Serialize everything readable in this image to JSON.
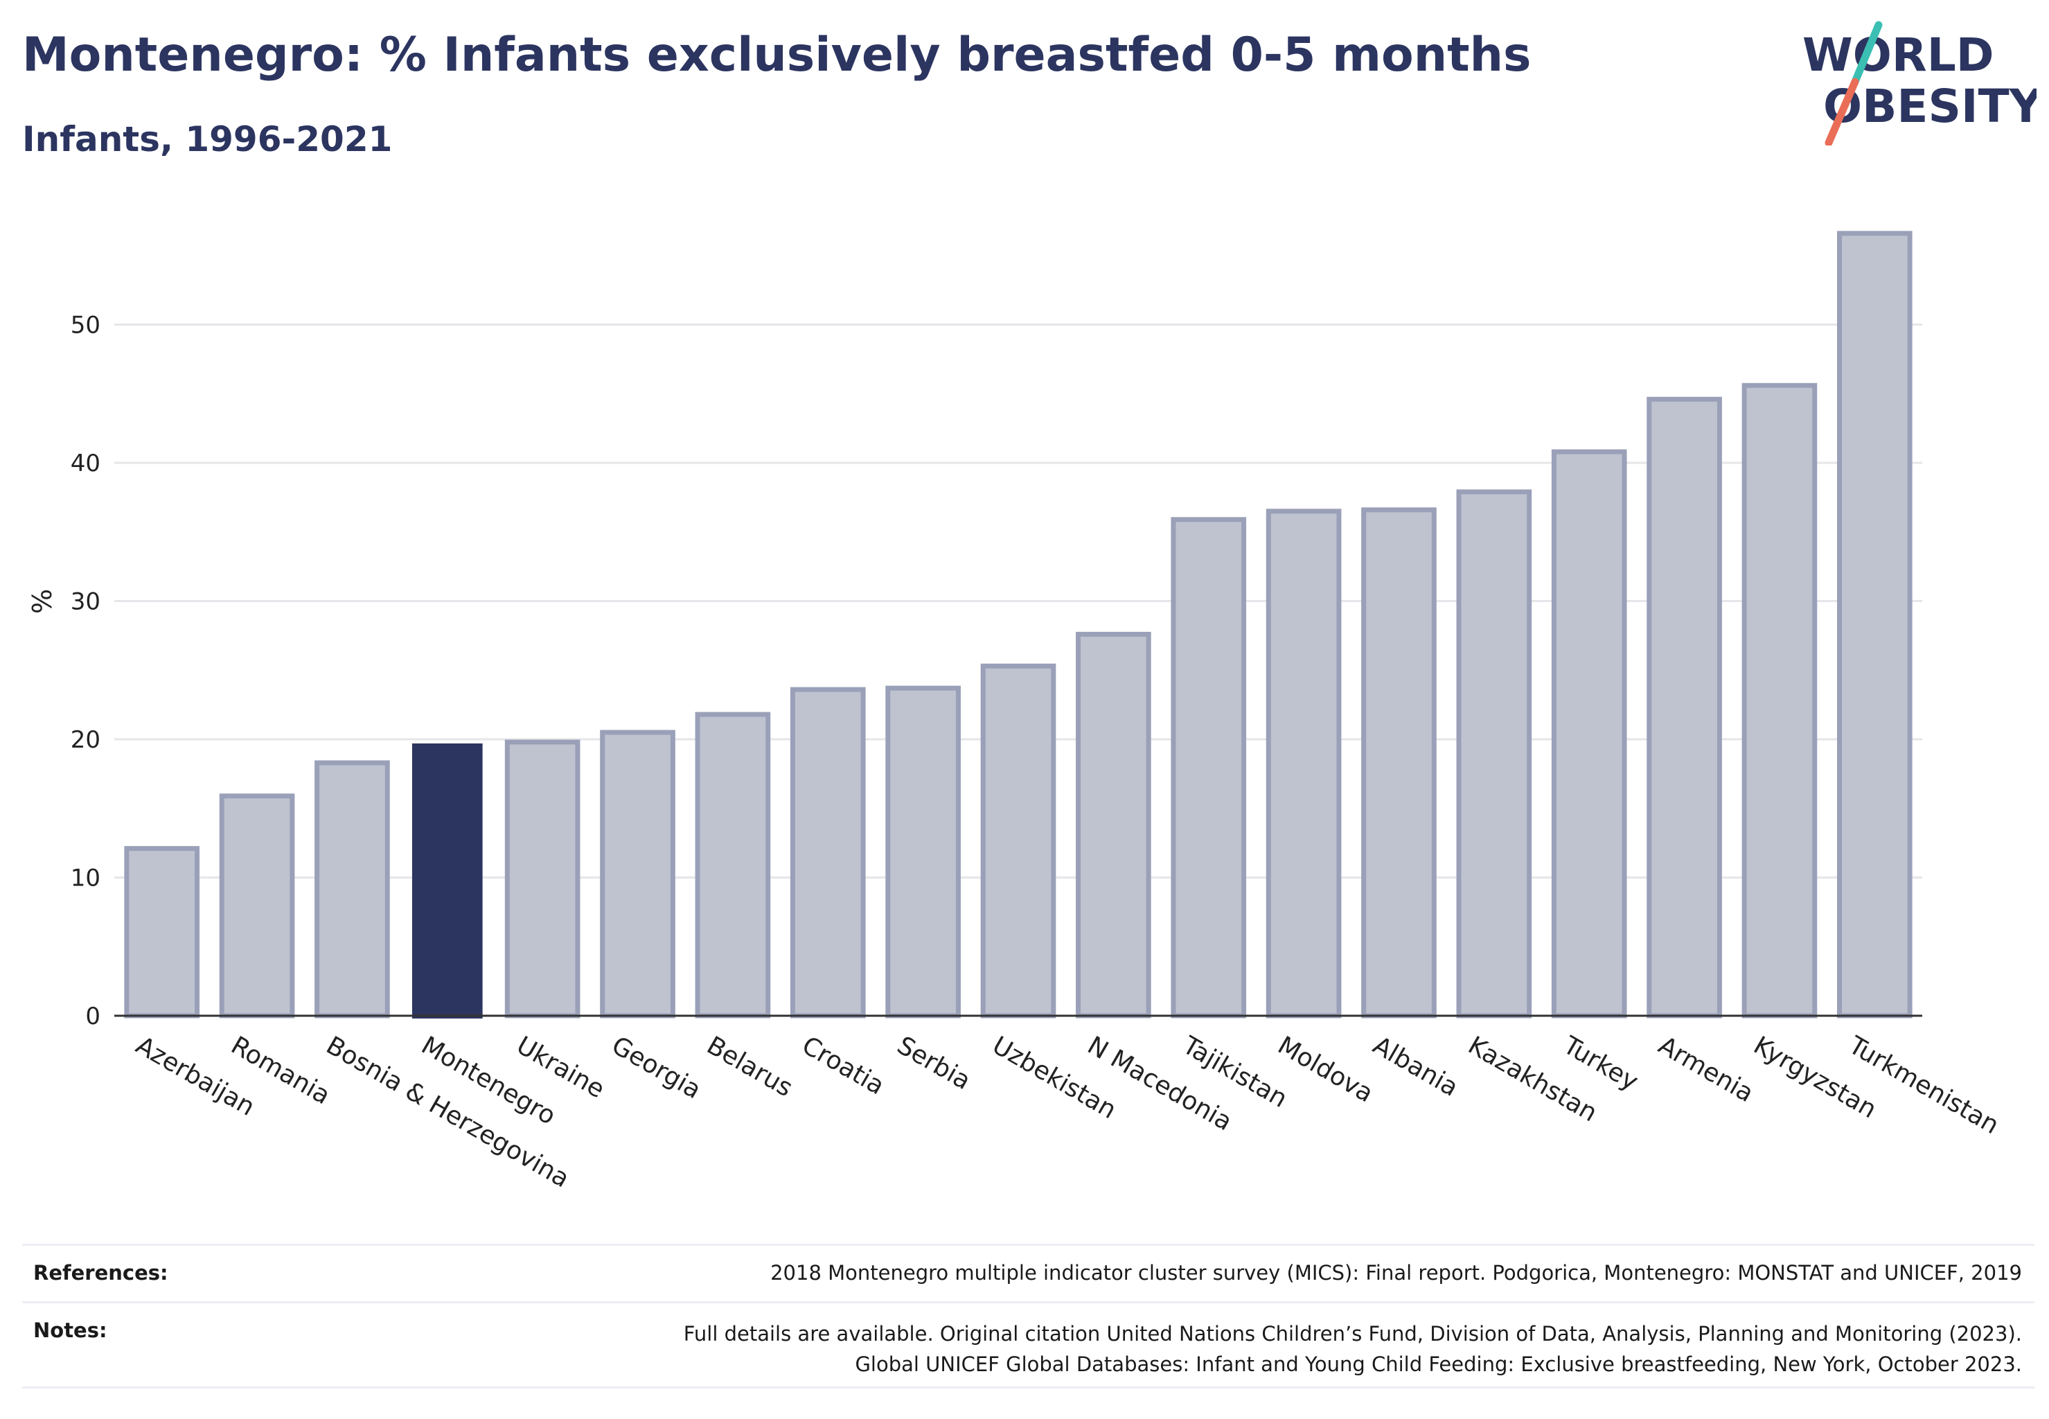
{
  "header": {
    "title": "Montenegro: % Infants exclusively breastfed 0-5 months",
    "subtitle": "Infants, 1996-2021"
  },
  "logo": {
    "line1": "WORLD",
    "line2": "OBESITY"
  },
  "colors": {
    "highlight": "#2c3560",
    "bar_fill": "#bfc3d0",
    "bar_stroke": "#9aa0b8",
    "grid": "#e6e6ea",
    "axis": "#333333",
    "logo_teal": "#3bbfb3",
    "logo_coral": "#ea6d58"
  },
  "chart_data": {
    "type": "bar",
    "title": "Montenegro: % Infants exclusively breastfed 0-5 months",
    "subtitle": "Infants, 1996-2021",
    "xlabel": "",
    "ylabel": "%",
    "ylim": [
      0,
      58
    ],
    "yticks": [
      0,
      10,
      20,
      30,
      40,
      50
    ],
    "grid": true,
    "highlight": "Montenegro",
    "categories": [
      "Azerbaijan",
      "Romania",
      "Bosnia & Herzegovina",
      "Montenegro",
      "Ukraine",
      "Georgia",
      "Belarus",
      "Croatia",
      "Serbia",
      "Uzbekistan",
      "N Macedonia",
      "Tajikistan",
      "Moldova",
      "Albania",
      "Kazakhstan",
      "Turkey",
      "Armenia",
      "Kyrgyzstan",
      "Turkmenistan"
    ],
    "values": [
      12.1,
      15.9,
      18.3,
      19.7,
      19.8,
      20.5,
      21.8,
      23.6,
      23.7,
      25.3,
      27.6,
      35.9,
      36.5,
      36.6,
      37.9,
      40.8,
      44.6,
      45.6,
      56.6
    ]
  },
  "footer": {
    "references_label": "References:",
    "references_text": "2018 Montenegro multiple indicator cluster survey (MICS): Final report. Podgorica, Montenegro: MONSTAT and UNICEF, 2019",
    "notes_label": "Notes:",
    "notes_line1": "Full details are available. Original citation United Nations Children’s Fund, Division of Data, Analysis, Planning and Monitoring (2023).",
    "notes_line2": "Global UNICEF Global Databases: Infant and Young Child Feeding: Exclusive breastfeeding, New York, October 2023."
  }
}
